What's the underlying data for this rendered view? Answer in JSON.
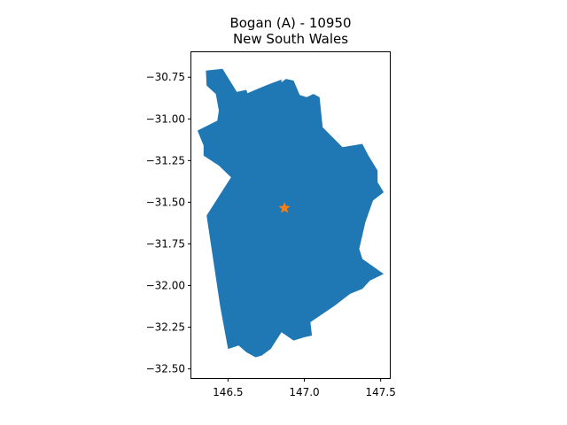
{
  "map": {
    "title": "Bogan (A) - 10950",
    "subtitle": "New South Wales",
    "x_ticks": [
      "146.5",
      "147.0",
      "147.5"
    ],
    "y_ticks": [
      "−30.75",
      "−31.00",
      "−31.25",
      "−31.50",
      "−31.75",
      "−32.00",
      "−32.25",
      "−32.50"
    ],
    "x_tick_values": [
      146.5,
      147.0,
      147.5
    ],
    "y_tick_values": [
      -30.75,
      -31.0,
      -31.25,
      -31.5,
      -31.75,
      -32.0,
      -32.25,
      -32.5
    ],
    "xlim": [
      146.26,
      147.56
    ],
    "ylim": [
      -32.555,
      -30.6
    ],
    "region_color": "#1f77b4",
    "marker_color": "#ff7f0e",
    "marker_icon": "star-icon",
    "centroid": [
      146.87,
      -31.535
    ],
    "boundary": [
      [
        146.355,
        -30.71
      ],
      [
        146.465,
        -30.7
      ],
      [
        146.558,
        -30.838
      ],
      [
        146.62,
        -30.826
      ],
      [
        146.628,
        -30.846
      ],
      [
        146.72,
        -30.81
      ],
      [
        146.78,
        -30.788
      ],
      [
        146.85,
        -30.764
      ],
      [
        146.85,
        -30.78
      ],
      [
        146.88,
        -30.76
      ],
      [
        146.93,
        -30.77
      ],
      [
        146.97,
        -30.856
      ],
      [
        147.015,
        -30.87
      ],
      [
        147.06,
        -30.85
      ],
      [
        147.1,
        -30.87
      ],
      [
        147.12,
        -31.05
      ],
      [
        147.25,
        -31.17
      ],
      [
        147.38,
        -31.15
      ],
      [
        147.42,
        -31.22
      ],
      [
        147.48,
        -31.31
      ],
      [
        147.48,
        -31.38
      ],
      [
        147.52,
        -31.44
      ],
      [
        147.45,
        -31.49
      ],
      [
        147.4,
        -31.62
      ],
      [
        147.36,
        -31.78
      ],
      [
        147.38,
        -31.84
      ],
      [
        147.52,
        -31.93
      ],
      [
        147.43,
        -31.97
      ],
      [
        147.38,
        -32.02
      ],
      [
        147.3,
        -32.05
      ],
      [
        147.2,
        -32.12
      ],
      [
        147.12,
        -32.17
      ],
      [
        147.04,
        -32.22
      ],
      [
        147.05,
        -32.3
      ],
      [
        147.0,
        -32.31
      ],
      [
        146.93,
        -32.33
      ],
      [
        146.85,
        -32.28
      ],
      [
        146.78,
        -32.38
      ],
      [
        146.72,
        -32.42
      ],
      [
        146.68,
        -32.43
      ],
      [
        146.62,
        -32.4
      ],
      [
        146.57,
        -32.36
      ],
      [
        146.5,
        -32.38
      ],
      [
        146.45,
        -32.13
      ],
      [
        146.36,
        -31.58
      ],
      [
        146.52,
        -31.35
      ],
      [
        146.44,
        -31.28
      ],
      [
        146.34,
        -31.22
      ],
      [
        146.34,
        -31.16
      ],
      [
        146.3,
        -31.07
      ],
      [
        146.43,
        -31.01
      ],
      [
        146.44,
        -30.95
      ],
      [
        146.42,
        -30.85
      ],
      [
        146.36,
        -30.8
      ],
      [
        146.355,
        -30.71
      ]
    ]
  }
}
